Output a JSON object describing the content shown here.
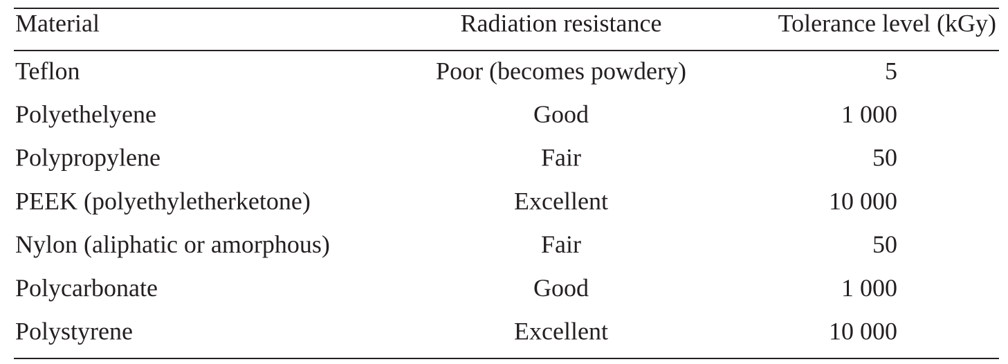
{
  "table": {
    "header": [
      "Material",
      "Radiation resistance",
      "Tolerance level (kGy)"
    ],
    "rows": [
      [
        "Teflon",
        "Poor (becomes powdery)",
        "5"
      ],
      [
        "Polyethelyene",
        "Good",
        "1 000"
      ],
      [
        "Polypropylene",
        "Fair",
        "50"
      ],
      [
        "PEEK (polyethyletherketone)",
        "Excellent",
        "10 000"
      ],
      [
        "Nylon (aliphatic or amorphous)",
        "Fair",
        "50"
      ],
      [
        "Polycarbonate",
        "Good",
        "1 000"
      ],
      [
        "Polystyrene",
        "Excellent",
        "10 000"
      ]
    ]
  }
}
